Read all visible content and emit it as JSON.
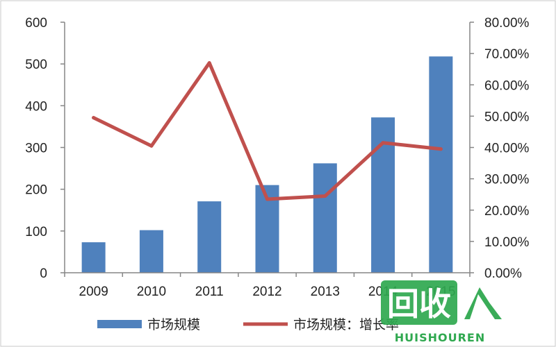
{
  "chart_data": {
    "type": "bar+line",
    "categories": [
      "2009",
      "2010",
      "2011",
      "2012",
      "2013",
      "2014",
      "2015"
    ],
    "series": [
      {
        "name": "市场规模",
        "type": "bar",
        "axis": "left",
        "values": [
          73,
          102,
          171,
          210,
          262,
          372,
          518
        ],
        "color": "#4f81bd"
      },
      {
        "name": "市场规模：增长率",
        "type": "line",
        "axis": "right",
        "values": [
          0.495,
          0.405,
          0.67,
          0.235,
          0.245,
          0.415,
          0.395
        ],
        "color": "#c0504d"
      }
    ],
    "y_left": {
      "min": 0,
      "max": 600,
      "ticks": [
        0,
        100,
        200,
        300,
        400,
        500,
        600
      ],
      "tick_labels": [
        "0",
        "100",
        "200",
        "300",
        "400",
        "500",
        "600"
      ]
    },
    "y_right": {
      "min": 0,
      "max": 0.8,
      "ticks": [
        0,
        0.1,
        0.2,
        0.3,
        0.4,
        0.5,
        0.6,
        0.7,
        0.8
      ],
      "tick_labels": [
        "0.00%",
        "10.00%",
        "20.00%",
        "30.00%",
        "40.00%",
        "50.00%",
        "60.00%",
        "70.00%",
        "80.00%"
      ]
    },
    "grid": false,
    "legend_position": "bottom",
    "title": "",
    "xlabel": "",
    "ylabel": ""
  },
  "watermark": {
    "big_text": "回收",
    "small_text": "HUISHOUREN",
    "color": "#2fa84f"
  }
}
